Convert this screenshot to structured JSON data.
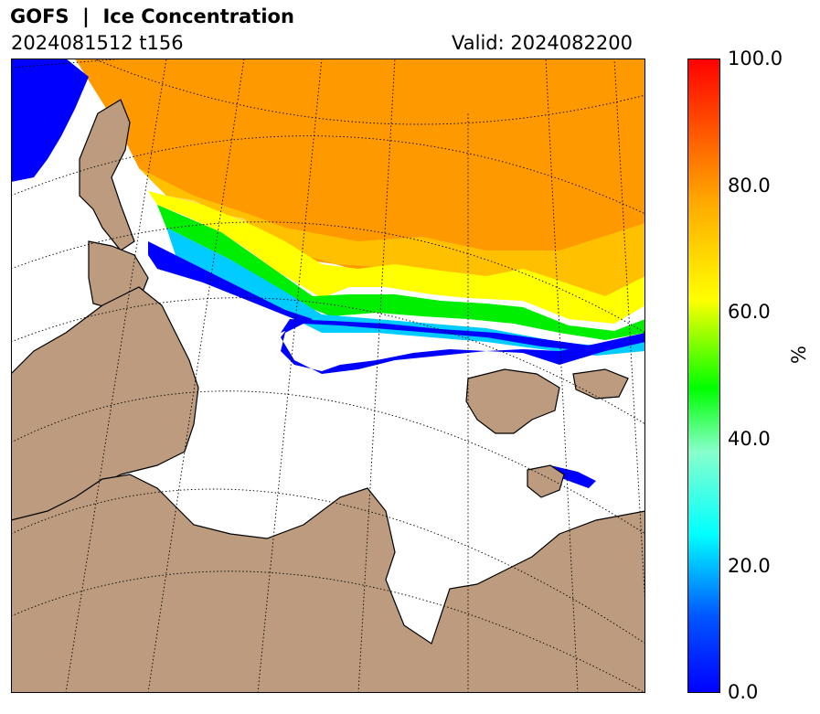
{
  "title": "GOFS  |  Ice Concentration",
  "init_label": "2024081512 t156",
  "valid_label": "Valid: 2024082200",
  "colorbar": {
    "unit_label": "%",
    "ticks": [
      "0.0",
      "20.0",
      "40.0",
      "60.0",
      "80.0",
      "100.0"
    ],
    "range": [
      0,
      100
    ]
  },
  "colors": {
    "land": "#bc9b7e",
    "ocean": "#ffffff",
    "coastline": "#000000",
    "gridline": "#000000"
  }
}
